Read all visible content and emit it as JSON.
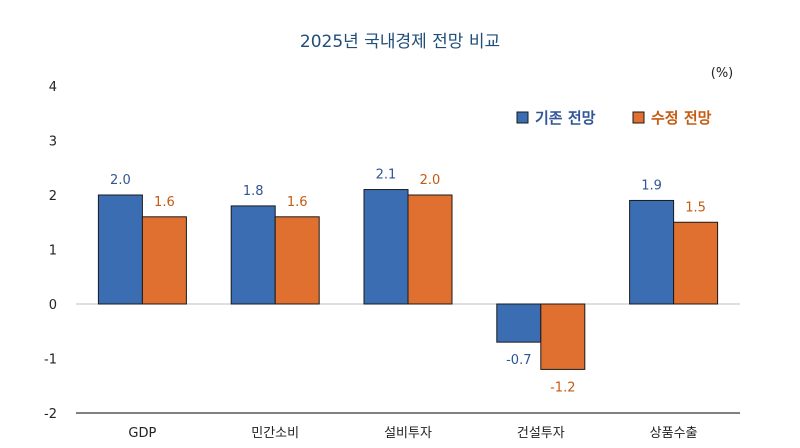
{
  "chart_data": {
    "type": "bar",
    "title": "2025년 국내경제 전망 비교",
    "unit": "(%)",
    "categories": [
      "GDP",
      "민간소비",
      "설비투자",
      "건설투자",
      "상품수출"
    ],
    "series": [
      {
        "name": "기존 전망",
        "values": [
          2.0,
          1.8,
          2.1,
          -0.7,
          1.9
        ],
        "labels": [
          "2.0",
          "1.8",
          "2.1",
          "-0.7",
          "1.9"
        ],
        "color": "#3b6db3",
        "label_color": "#2f5597"
      },
      {
        "name": "수정 전망",
        "values": [
          1.6,
          1.6,
          2.0,
          -1.2,
          1.5
        ],
        "labels": [
          "1.6",
          "1.6",
          "2.0",
          "-1.2",
          "1.5"
        ],
        "color": "#e0702f",
        "label_color": "#c55a11"
      }
    ],
    "ylim": [
      -2,
      4
    ],
    "yticks": [
      "-2",
      "-1",
      "0",
      "1",
      "2",
      "3",
      "4"
    ],
    "legend": "top-right",
    "grid": false
  }
}
